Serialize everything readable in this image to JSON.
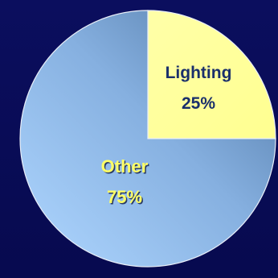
{
  "chart_data": {
    "type": "pie",
    "categories": [
      "Lighting",
      "Other"
    ],
    "values": [
      25,
      75
    ],
    "value_labels": [
      "25%",
      "75%"
    ],
    "colors": {
      "Lighting": "#ffff99",
      "Other": "#9ec6f2",
      "background": "#0a0d5c",
      "lighting_label": "#1a2f6b",
      "other_label": "#ffff66"
    },
    "start": "12 o'clock",
    "direction": "clockwise",
    "legend": "none"
  }
}
